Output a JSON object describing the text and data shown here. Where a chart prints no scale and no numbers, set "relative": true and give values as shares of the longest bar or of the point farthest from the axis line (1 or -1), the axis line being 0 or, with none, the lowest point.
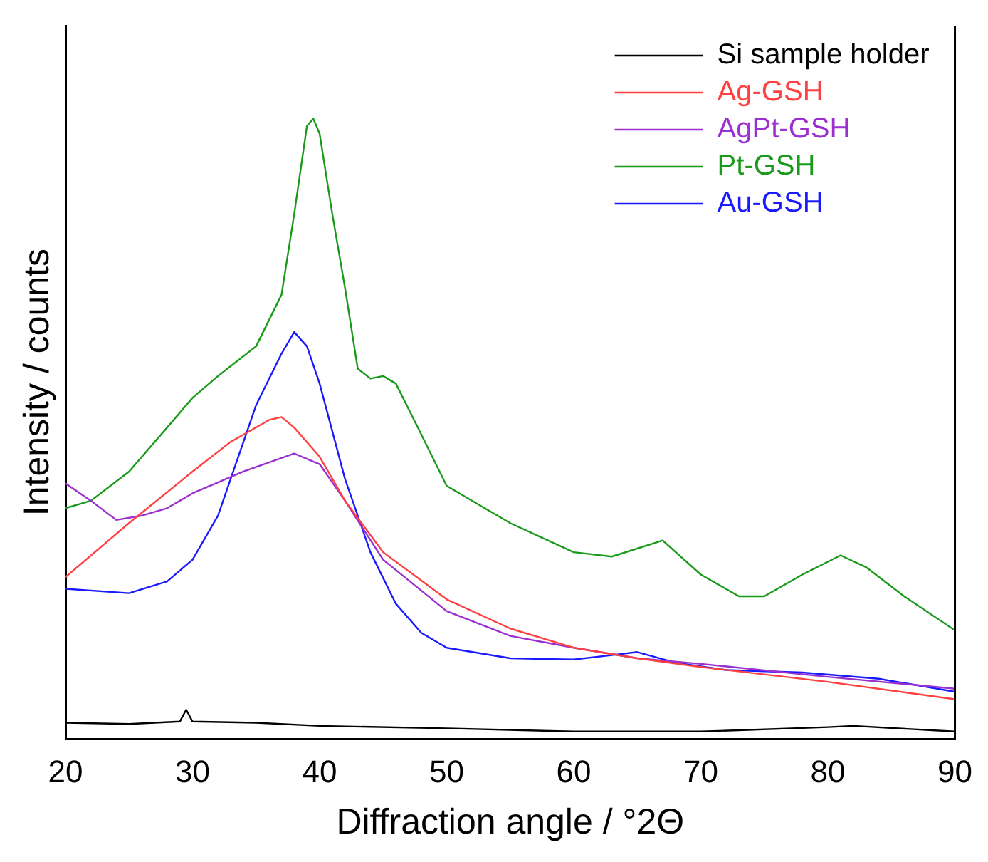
{
  "chart_data": {
    "type": "line",
    "relative": true,
    "xlabel": "Diffraction angle / °2Θ",
    "ylabel": "Intensity / counts",
    "xlim": [
      20,
      90
    ],
    "xticks": [
      20,
      30,
      40,
      50,
      60,
      70,
      80,
      90
    ],
    "legend": "top right",
    "grid": false,
    "marker": "none",
    "line_style": "solid",
    "series": [
      {
        "name": "Si sample holder",
        "color": "#000000",
        "x": [
          20,
          25,
          29,
          29.5,
          30,
          35,
          40,
          50,
          60,
          70,
          80,
          82,
          90
        ],
        "values": [
          0.026,
          0.024,
          0.028,
          0.047,
          0.028,
          0.026,
          0.021,
          0.017,
          0.012,
          0.012,
          0.019,
          0.021,
          0.012
        ]
      },
      {
        "name": "Ag-GSH",
        "color": "#ff4040",
        "x": [
          20,
          25,
          30,
          33,
          36,
          37,
          38,
          40,
          42,
          45,
          50,
          55,
          60,
          65,
          70,
          80,
          90
        ],
        "values": [
          0.261,
          0.348,
          0.431,
          0.479,
          0.514,
          0.519,
          0.502,
          0.455,
          0.384,
          0.301,
          0.225,
          0.178,
          0.147,
          0.13,
          0.116,
          0.092,
          0.064
        ]
      },
      {
        "name": "AgPt-GSH",
        "color": "#9b30d0",
        "x": [
          20,
          22,
          24,
          26,
          28,
          30,
          34,
          38,
          40,
          42,
          45,
          50,
          55,
          60,
          65,
          70,
          80,
          90
        ],
        "values": [
          0.412,
          0.384,
          0.353,
          0.36,
          0.372,
          0.396,
          0.431,
          0.46,
          0.443,
          0.384,
          0.289,
          0.206,
          0.166,
          0.147,
          0.13,
          0.121,
          0.1,
          0.081
        ]
      },
      {
        "name": "Pt-GSH",
        "color": "#1a9a1a",
        "x": [
          20,
          22,
          25,
          28,
          30,
          32,
          35,
          37,
          38,
          39,
          39.5,
          40,
          41,
          42,
          43,
          44,
          45,
          46,
          48,
          50,
          55,
          60,
          63,
          67,
          70,
          73,
          75,
          78,
          81,
          83,
          86,
          90
        ],
        "values": [
          0.372,
          0.384,
          0.431,
          0.502,
          0.55,
          0.585,
          0.633,
          0.716,
          0.846,
          0.988,
          1,
          0.976,
          0.846,
          0.727,
          0.597,
          0.581,
          0.585,
          0.573,
          0.491,
          0.408,
          0.348,
          0.301,
          0.294,
          0.32,
          0.265,
          0.23,
          0.23,
          0.265,
          0.296,
          0.277,
          0.23,
          0.175
        ]
      },
      {
        "name": "Au-GSH",
        "color": "#1a1aff",
        "x": [
          20,
          25,
          28,
          30,
          32,
          35,
          37,
          38,
          39,
          40,
          42,
          44,
          46,
          48,
          50,
          55,
          60,
          63,
          65,
          68,
          72,
          78,
          84,
          90
        ],
        "values": [
          0.242,
          0.235,
          0.254,
          0.289,
          0.36,
          0.538,
          0.621,
          0.656,
          0.633,
          0.573,
          0.419,
          0.301,
          0.218,
          0.171,
          0.147,
          0.13,
          0.128,
          0.135,
          0.14,
          0.123,
          0.111,
          0.107,
          0.097,
          0.076
        ]
      }
    ]
  }
}
